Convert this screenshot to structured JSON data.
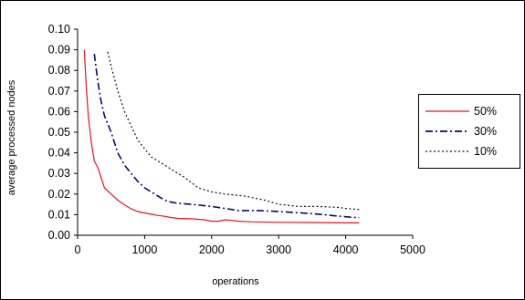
{
  "chart_data": {
    "type": "line",
    "title": "",
    "xlabel": "operations",
    "ylabel": "average processed nodes",
    "xlim": [
      0,
      5000
    ],
    "ylim": [
      0,
      0.1
    ],
    "x_ticks": [
      "0",
      "1000",
      "2000",
      "3000",
      "4000",
      "5000"
    ],
    "y_ticks": [
      "0.00",
      "0.01",
      "0.02",
      "0.03",
      "0.04",
      "0.05",
      "0.06",
      "0.07",
      "0.08",
      "0.09",
      "0.10"
    ],
    "grid": false,
    "legend_position": "right",
    "series": [
      {
        "name": "50%",
        "color": "#e8141c",
        "dash": "solid",
        "points": [
          [
            100,
            0.09
          ],
          [
            130,
            0.072
          ],
          [
            160,
            0.058
          ],
          [
            200,
            0.046
          ],
          [
            250,
            0.036
          ],
          [
            300,
            0.033
          ],
          [
            350,
            0.028
          ],
          [
            400,
            0.023
          ],
          [
            500,
            0.02
          ],
          [
            600,
            0.017
          ],
          [
            700,
            0.0148
          ],
          [
            800,
            0.0128
          ],
          [
            900,
            0.0115
          ],
          [
            1000,
            0.0108
          ],
          [
            1100,
            0.0102
          ],
          [
            1200,
            0.0096
          ],
          [
            1300,
            0.0092
          ],
          [
            1400,
            0.0086
          ],
          [
            1500,
            0.0082
          ],
          [
            1700,
            0.008
          ],
          [
            1900,
            0.0075
          ],
          [
            2000,
            0.0068
          ],
          [
            2100,
            0.0068
          ],
          [
            2200,
            0.0075
          ],
          [
            2300,
            0.0072
          ],
          [
            2400,
            0.0068
          ],
          [
            2600,
            0.0065
          ],
          [
            3000,
            0.0063
          ],
          [
            3500,
            0.0062
          ],
          [
            4000,
            0.006
          ],
          [
            4200,
            0.006
          ]
        ]
      },
      {
        "name": "30%",
        "color": "#0a0a6e",
        "dash": "dashdot",
        "points": [
          [
            250,
            0.088
          ],
          [
            300,
            0.075
          ],
          [
            350,
            0.065
          ],
          [
            400,
            0.058
          ],
          [
            500,
            0.05
          ],
          [
            600,
            0.04
          ],
          [
            700,
            0.034
          ],
          [
            800,
            0.03
          ],
          [
            900,
            0.026
          ],
          [
            1000,
            0.023
          ],
          [
            1100,
            0.021
          ],
          [
            1200,
            0.019
          ],
          [
            1300,
            0.017
          ],
          [
            1400,
            0.016
          ],
          [
            1500,
            0.0155
          ],
          [
            1700,
            0.015
          ],
          [
            2000,
            0.014
          ],
          [
            2200,
            0.013
          ],
          [
            2400,
            0.012
          ],
          [
            2700,
            0.012
          ],
          [
            3000,
            0.0115
          ],
          [
            3500,
            0.0105
          ],
          [
            4000,
            0.009
          ],
          [
            4200,
            0.0085
          ]
        ]
      },
      {
        "name": "10%",
        "color": "#111111",
        "dash": "dotted",
        "points": [
          [
            450,
            0.089
          ],
          [
            500,
            0.082
          ],
          [
            600,
            0.07
          ],
          [
            700,
            0.06
          ],
          [
            800,
            0.053
          ],
          [
            900,
            0.046
          ],
          [
            1000,
            0.042
          ],
          [
            1100,
            0.038
          ],
          [
            1200,
            0.036
          ],
          [
            1400,
            0.032
          ],
          [
            1600,
            0.028
          ],
          [
            1800,
            0.023
          ],
          [
            2000,
            0.021
          ],
          [
            2200,
            0.02
          ],
          [
            2500,
            0.019
          ],
          [
            2800,
            0.017
          ],
          [
            3000,
            0.015
          ],
          [
            3300,
            0.014
          ],
          [
            3600,
            0.014
          ],
          [
            3900,
            0.0135
          ],
          [
            4000,
            0.013
          ],
          [
            4200,
            0.0125
          ]
        ]
      }
    ]
  }
}
